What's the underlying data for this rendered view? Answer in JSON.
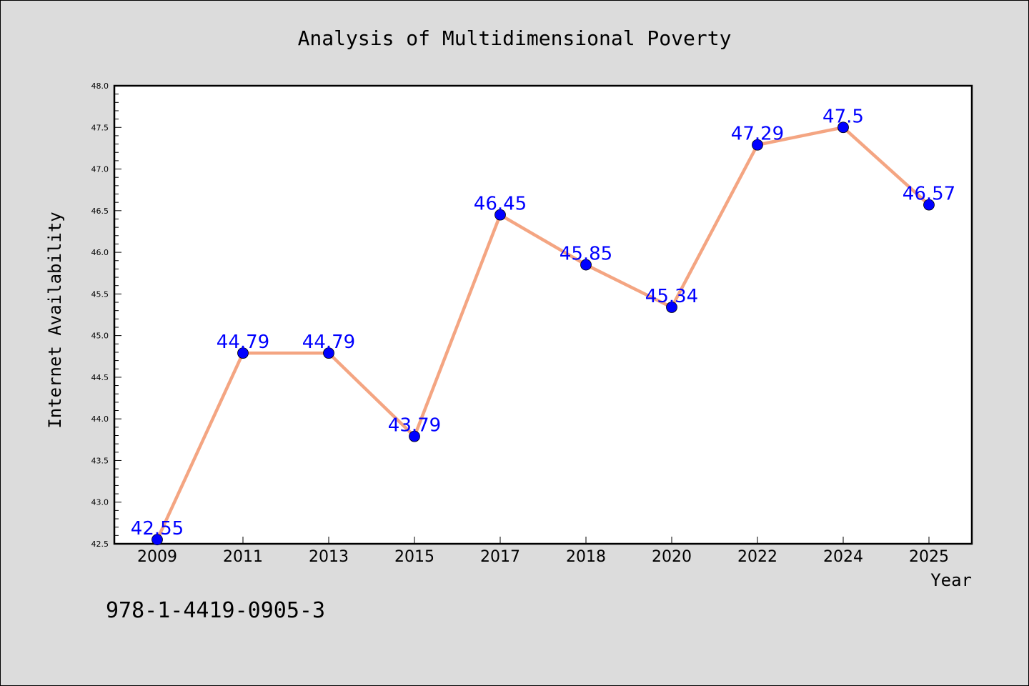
{
  "chart_data": {
    "type": "line",
    "title": "Analysis of Multidimensional Poverty",
    "xlabel": "Year",
    "ylabel": "Internet Availability",
    "categories": [
      "2009",
      "2011",
      "2013",
      "2015",
      "2017",
      "2018",
      "2020",
      "2022",
      "2024",
      "2025"
    ],
    "series": [
      {
        "values": [
          42.55,
          44.79,
          44.79,
          43.79,
          46.45,
          45.85,
          45.34,
          47.29,
          47.5,
          46.57
        ],
        "data_labels": [
          "42.55",
          "44.79",
          "44.79",
          "43.79",
          "46.45",
          "45.85",
          "45.34",
          "47.29",
          "47.5",
          "46.57"
        ],
        "line_color": "#f4a582",
        "marker_color": "#0000ff",
        "label_color": "#0000ff"
      }
    ],
    "ylim": [
      42.5,
      48.0
    ],
    "yticks": [
      "42.5",
      "43.0",
      "43.5",
      "44.0",
      "44.5",
      "45.0",
      "45.5",
      "46.0",
      "46.5",
      "47.0",
      "47.5",
      "48.0"
    ],
    "grid": false,
    "legend": "none",
    "plot_background": "#ffffff",
    "figure_background": "#dcdcdc"
  },
  "annotation": "978-1-4419-0905-3"
}
